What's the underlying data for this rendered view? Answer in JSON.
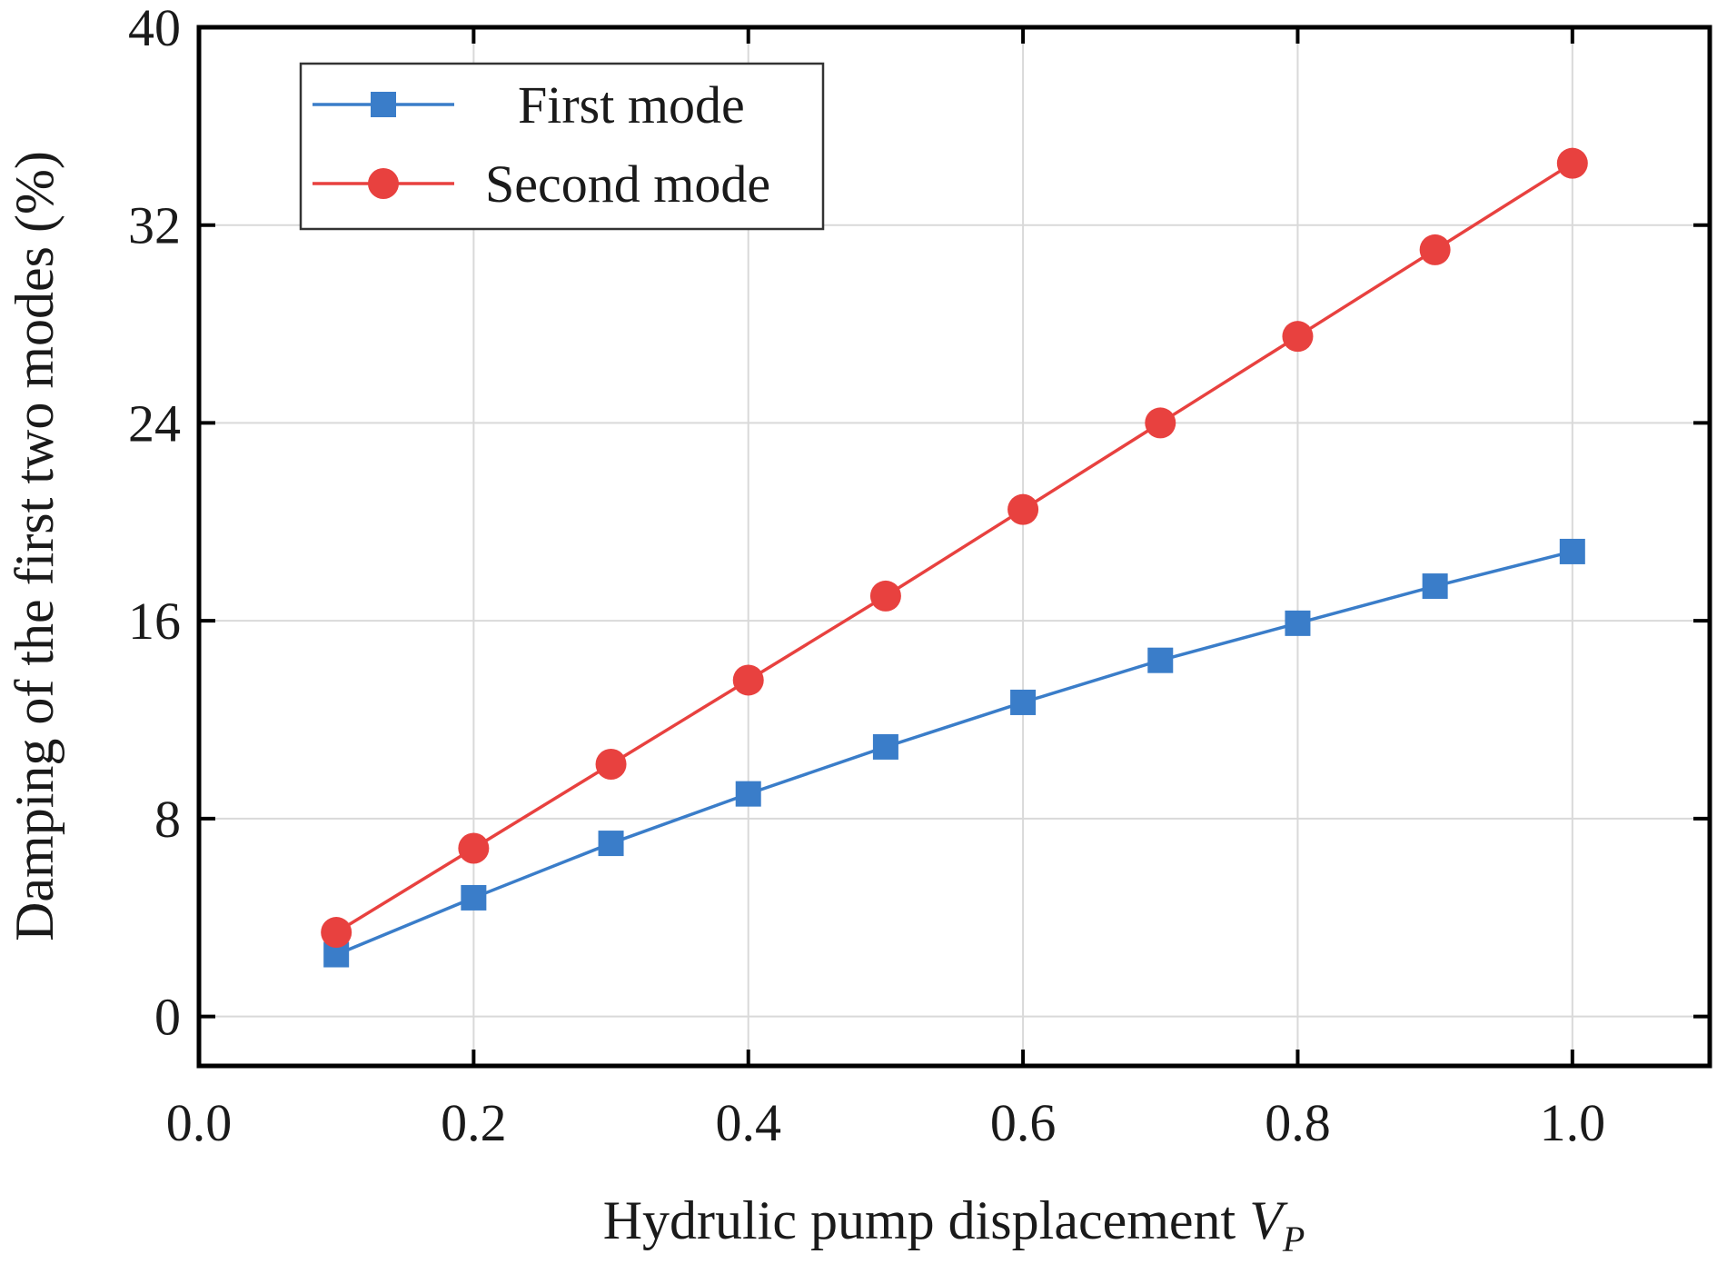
{
  "chart_data": {
    "type": "line",
    "xlabel": "Hydrulic pump displacement ",
    "xlabel_var": "V",
    "xlabel_sub": "P",
    "ylabel": "Damping of the first two modes (%)",
    "xlim": [
      0.0,
      1.1
    ],
    "ylim": [
      -2,
      40
    ],
    "x_ticks": [
      0.0,
      0.2,
      0.4,
      0.6,
      0.8,
      1.0
    ],
    "x_tick_labels": [
      "0.0",
      "0.2",
      "0.4",
      "0.6",
      "0.8",
      "1.0"
    ],
    "y_ticks": [
      0,
      8,
      16,
      24,
      32,
      40
    ],
    "y_tick_labels": [
      "0",
      "8",
      "16",
      "24",
      "32",
      "40"
    ],
    "grid": true,
    "legend_position": "top-left",
    "x": [
      0.1,
      0.2,
      0.3,
      0.4,
      0.5,
      0.6,
      0.7,
      0.8,
      0.9,
      1.0
    ],
    "series": [
      {
        "name": "First mode",
        "marker": "square",
        "color": "#3a7dc9",
        "values": [
          2.5,
          4.8,
          7.0,
          9.0,
          10.9,
          12.7,
          14.4,
          15.9,
          17.4,
          18.8
        ]
      },
      {
        "name": "Second mode",
        "marker": "circle",
        "color": "#e8413f",
        "values": [
          3.4,
          6.8,
          10.2,
          13.6,
          17.0,
          20.5,
          24.0,
          27.5,
          31.0,
          34.5
        ]
      }
    ]
  }
}
